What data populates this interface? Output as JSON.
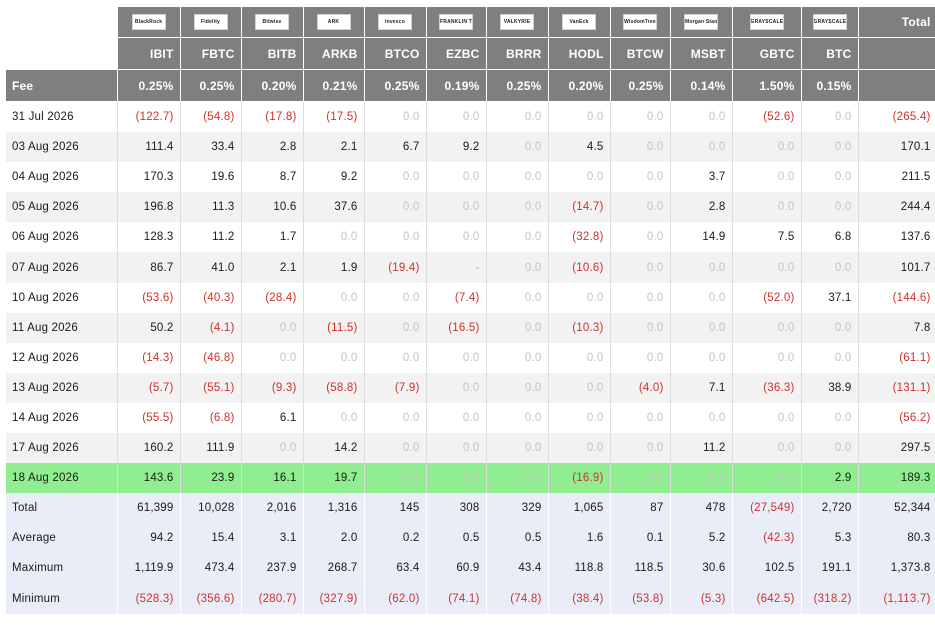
{
  "logos": [
    {
      "icon": "blackrock-logo",
      "text": "BlackRock"
    },
    {
      "icon": "fidelity-logo",
      "text": "Fidelity"
    },
    {
      "icon": "bitwise-logo",
      "text": "Bitwise"
    },
    {
      "icon": "ark-logo",
      "text": "ARK"
    },
    {
      "icon": "invesco-logo",
      "text": "Invesco"
    },
    {
      "icon": "franklin-templeton-logo",
      "text": "FRANKLIN TEMPLETON"
    },
    {
      "icon": "valkyrie-logo",
      "text": "VALKYRIE"
    },
    {
      "icon": "vaneck-logo",
      "text": "VanEck"
    },
    {
      "icon": "wisdomtree-logo",
      "text": "WisdomTree"
    },
    {
      "icon": "morgan-stanley-logo",
      "text": "Morgan Stanley"
    },
    {
      "icon": "grayscale-logo",
      "text": "GRAYSCALE"
    },
    {
      "icon": "grayscale-mini-logo",
      "text": "GRAYSCALE"
    }
  ],
  "total_header": "Total",
  "tickers": [
    "IBIT",
    "FBTC",
    "BITB",
    "ARKB",
    "BTCO",
    "EZBC",
    "BRRR",
    "HODL",
    "BTCW",
    "MSBT",
    "GBTC",
    "BTC"
  ],
  "fee": {
    "label": "Fee",
    "values": [
      "0.25%",
      "0.25%",
      "0.20%",
      "0.21%",
      "0.25%",
      "0.19%",
      "0.25%",
      "0.20%",
      "0.25%",
      "0.14%",
      "1.50%",
      "0.15%"
    ]
  },
  "highlight_color": "#90ee90",
  "negative_color": "#d0312d",
  "rows": [
    {
      "date": "31 Jul 2026",
      "values": [
        "(122.7)",
        "(54.8)",
        "(17.8)",
        "(17.5)",
        "0.0",
        "0.0",
        "0.0",
        "0.0",
        "0.0",
        "0.0",
        "(52.6)",
        "0.0"
      ],
      "total": "(265.4)"
    },
    {
      "date": "03 Aug 2026",
      "values": [
        "111.4",
        "33.4",
        "2.8",
        "2.1",
        "6.7",
        "9.2",
        "0.0",
        "4.5",
        "0.0",
        "0.0",
        "0.0",
        "0.0"
      ],
      "total": "170.1"
    },
    {
      "date": "04 Aug 2026",
      "values": [
        "170.3",
        "19.6",
        "8.7",
        "9.2",
        "0.0",
        "0.0",
        "0.0",
        "0.0",
        "0.0",
        "3.7",
        "0.0",
        "0.0"
      ],
      "total": "211.5"
    },
    {
      "date": "05 Aug 2026",
      "values": [
        "196.8",
        "11.3",
        "10.6",
        "37.6",
        "0.0",
        "0.0",
        "0.0",
        "(14.7)",
        "0.0",
        "2.8",
        "0.0",
        "0.0"
      ],
      "total": "244.4"
    },
    {
      "date": "06 Aug 2026",
      "values": [
        "128.3",
        "11.2",
        "1.7",
        "0.0",
        "0.0",
        "0.0",
        "0.0",
        "(32.8)",
        "0.0",
        "14.9",
        "7.5",
        "6.8"
      ],
      "total": "137.6"
    },
    {
      "date": "07 Aug 2026",
      "values": [
        "86.7",
        "41.0",
        "2.1",
        "1.9",
        "(19.4)",
        "-",
        "0.0",
        "(10.6)",
        "0.0",
        "0.0",
        "0.0",
        "0.0"
      ],
      "total": "101.7"
    },
    {
      "date": "10 Aug 2026",
      "values": [
        "(53.6)",
        "(40.3)",
        "(28.4)",
        "0.0",
        "0.0",
        "(7.4)",
        "0.0",
        "0.0",
        "0.0",
        "0.0",
        "(52.0)",
        "37.1"
      ],
      "total": "(144.6)"
    },
    {
      "date": "11 Aug 2026",
      "values": [
        "50.2",
        "(4.1)",
        "0.0",
        "(11.5)",
        "0.0",
        "(16.5)",
        "0.0",
        "(10.3)",
        "0.0",
        "0.0",
        "0.0",
        "0.0"
      ],
      "total": "7.8"
    },
    {
      "date": "12 Aug 2026",
      "values": [
        "(14.3)",
        "(46.8)",
        "0.0",
        "0.0",
        "0.0",
        "0.0",
        "0.0",
        "0.0",
        "0.0",
        "0.0",
        "0.0",
        "0.0"
      ],
      "total": "(61.1)"
    },
    {
      "date": "13 Aug 2026",
      "values": [
        "(5.7)",
        "(55.1)",
        "(9.3)",
        "(58.8)",
        "(7.9)",
        "0.0",
        "0.0",
        "0.0",
        "(4.0)",
        "7.1",
        "(36.3)",
        "38.9"
      ],
      "total": "(131.1)"
    },
    {
      "date": "14 Aug 2026",
      "values": [
        "(55.5)",
        "(6.8)",
        "6.1",
        "0.0",
        "0.0",
        "0.0",
        "0.0",
        "0.0",
        "0.0",
        "0.0",
        "0.0",
        "0.0"
      ],
      "total": "(56.2)"
    },
    {
      "date": "17 Aug 2026",
      "values": [
        "160.2",
        "111.9",
        "0.0",
        "14.2",
        "0.0",
        "0.0",
        "0.0",
        "0.0",
        "0.0",
        "11.2",
        "0.0",
        "0.0"
      ],
      "total": "297.5"
    },
    {
      "date": "18 Aug 2026",
      "values": [
        "143.6",
        "23.9",
        "16.1",
        "19.7",
        "0.0",
        "0.0",
        "0.0",
        "(16.9)",
        "0.0",
        "0.0",
        "0.0",
        "2.9"
      ],
      "total": "189.3",
      "highlight": true
    }
  ],
  "summary": [
    {
      "label": "Total",
      "values": [
        "61,399",
        "10,028",
        "2,016",
        "1,316",
        "145",
        "308",
        "329",
        "1,065",
        "87",
        "478",
        "(27,549)",
        "2,720"
      ],
      "total": "52,344"
    },
    {
      "label": "Average",
      "values": [
        "94.2",
        "15.4",
        "3.1",
        "2.0",
        "0.2",
        "0.5",
        "0.5",
        "1.6",
        "0.1",
        "5.2",
        "(42.3)",
        "5.3"
      ],
      "total": "80.3"
    },
    {
      "label": "Maximum",
      "values": [
        "1,119.9",
        "473.4",
        "237.9",
        "268.7",
        "63.4",
        "60.9",
        "43.4",
        "118.8",
        "118.5",
        "30.6",
        "102.5",
        "191.1"
      ],
      "total": "1,373.8"
    },
    {
      "label": "Minimum",
      "values": [
        "(528.3)",
        "(356.6)",
        "(280.7)",
        "(327.9)",
        "(62.0)",
        "(74.1)",
        "(74.8)",
        "(38.4)",
        "(53.8)",
        "(5.3)",
        "(642.5)",
        "(318.2)"
      ],
      "total": "(1,113.7)"
    }
  ]
}
